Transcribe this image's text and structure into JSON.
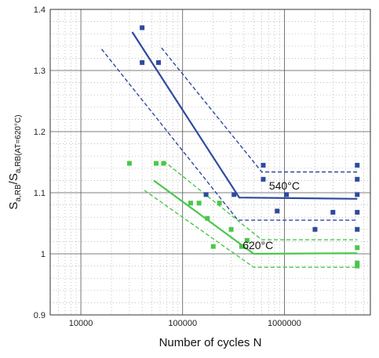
{
  "chart_data": {
    "type": "scatter",
    "xlabel": "Number of cycles N",
    "ylabel_main": "S",
    "ylabel_sub1": "a,RB",
    "ylabel_slash": "/S",
    "ylabel_sub2": "a,RB(AT=620°C)",
    "x_scale": "log",
    "xlim": [
      5000,
      7000000
    ],
    "ylim": [
      0.9,
      1.4
    ],
    "grid": true,
    "x_ticks": [
      {
        "value": 10000,
        "label": "10000"
      },
      {
        "value": 100000,
        "label": "100000"
      },
      {
        "value": 1000000,
        "label": "1000000"
      }
    ],
    "y_ticks": [
      {
        "value": 0.9,
        "label": "0.9"
      },
      {
        "value": 1.0,
        "label": "1"
      },
      {
        "value": 1.1,
        "label": "1.1"
      },
      {
        "value": 1.2,
        "label": "1.2"
      },
      {
        "value": 1.3,
        "label": "1.3"
      },
      {
        "value": 1.4,
        "label": "1.4"
      }
    ],
    "annotations": [
      {
        "text": "540°C",
        "x": 1000000,
        "y": 1.105,
        "color": "#111111"
      },
      {
        "text": "620°C",
        "x": 550000,
        "y": 1.008,
        "color": "#111111"
      }
    ],
    "series": [
      {
        "group": "540°C",
        "kind": "points",
        "color": "#2f4a9e",
        "points": [
          [
            40000,
            1.37
          ],
          [
            40000,
            1.313
          ],
          [
            58000,
            1.313
          ],
          [
            170000,
            1.097
          ],
          [
            320000,
            1.097
          ],
          [
            620000,
            1.145
          ],
          [
            620000,
            1.122
          ],
          [
            1050000,
            1.097
          ],
          [
            850000,
            1.07
          ],
          [
            2000000,
            1.04
          ],
          [
            3000000,
            1.068
          ],
          [
            5200000,
            1.145
          ],
          [
            5200000,
            1.122
          ],
          [
            5200000,
            1.097
          ],
          [
            5200000,
            1.068
          ],
          [
            5200000,
            1.04
          ]
        ]
      },
      {
        "group": "540°C",
        "kind": "line",
        "style": "solid",
        "color": "#2f4a9e",
        "points": [
          [
            32000,
            1.363
          ],
          [
            360000,
            1.092
          ],
          [
            5200000,
            1.09
          ]
        ]
      },
      {
        "group": "540°C",
        "kind": "line",
        "style": "dashed",
        "color": "#2f4a9e",
        "points": [
          [
            62000,
            1.337
          ],
          [
            600000,
            1.134
          ],
          [
            5200000,
            1.134
          ]
        ]
      },
      {
        "group": "540°C",
        "kind": "line",
        "style": "dashed",
        "color": "#2f4a9e",
        "points": [
          [
            16000,
            1.335
          ],
          [
            350000,
            1.055
          ],
          [
            5200000,
            1.055
          ]
        ]
      },
      {
        "group": "620°C",
        "kind": "points",
        "color": "#4bc64b",
        "points": [
          [
            30000,
            1.148
          ],
          [
            55000,
            1.148
          ],
          [
            65000,
            1.148
          ],
          [
            120000,
            1.083
          ],
          [
            145000,
            1.083
          ],
          [
            230000,
            1.083
          ],
          [
            175000,
            1.058
          ],
          [
            300000,
            1.04
          ],
          [
            200000,
            1.012
          ],
          [
            380000,
            1.012
          ],
          [
            430000,
            1.022
          ],
          [
            5200000,
            1.01
          ],
          [
            5200000,
            0.985
          ],
          [
            5200000,
            0.98
          ]
        ]
      },
      {
        "group": "620°C",
        "kind": "line",
        "style": "solid",
        "color": "#4bc64b",
        "points": [
          [
            52000,
            1.12
          ],
          [
            500000,
            1.0
          ],
          [
            5200000,
            1.001
          ]
        ]
      },
      {
        "group": "620°C",
        "kind": "line",
        "style": "dashed",
        "color": "#4bc64b",
        "points": [
          [
            65000,
            1.152
          ],
          [
            600000,
            1.023
          ],
          [
            5200000,
            1.023
          ]
        ]
      },
      {
        "group": "620°C",
        "kind": "line",
        "style": "dashed",
        "color": "#4bc64b",
        "points": [
          [
            42000,
            1.104
          ],
          [
            500000,
            0.978
          ],
          [
            5200000,
            0.978
          ]
        ]
      }
    ]
  }
}
